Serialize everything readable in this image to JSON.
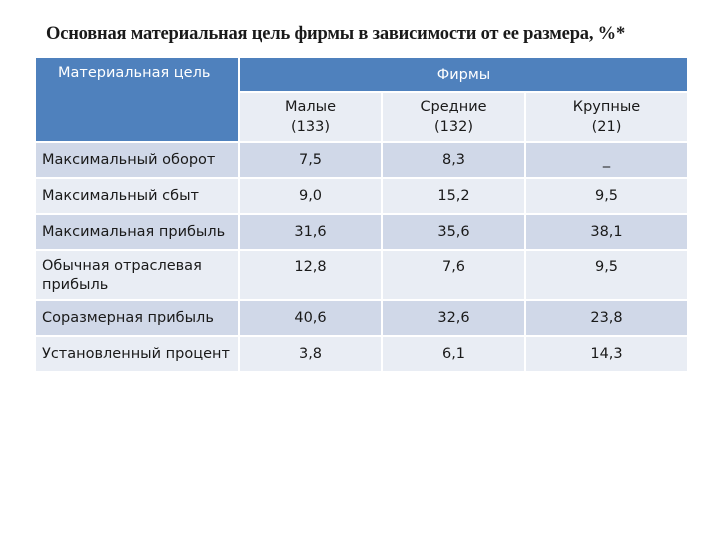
{
  "title": "Основная материальная цель фирмы в зависимости от ее размера, %*",
  "table": {
    "header": {
      "row_header": "Материальная цель",
      "group_header": "Фирмы",
      "columns": [
        {
          "name": "Малые",
          "count": "(133)"
        },
        {
          "name": "Средние",
          "count": "(132)"
        },
        {
          "name": "Крупные",
          "count": "(21)"
        }
      ]
    },
    "rows": [
      {
        "label": "Максимальный оборот",
        "values": [
          "7,5",
          "8,3",
          "_"
        ]
      },
      {
        "label": "Максимальный сбыт",
        "values": [
          "9,0",
          "15,2",
          "9,5"
        ]
      },
      {
        "label": "Максимальная прибыль",
        "values": [
          "31,6",
          "35,6",
          "38,1"
        ]
      },
      {
        "label": "Обычная отраслевая прибыль",
        "values": [
          "12,8",
          "7,6",
          "9,5"
        ]
      },
      {
        "label": "Соразмерная прибыль",
        "values": [
          "40,6",
          "32,6",
          "23,8"
        ]
      },
      {
        "label": "Установленный процент",
        "values": [
          "3,8",
          "6,1",
          "14,3"
        ]
      }
    ]
  },
  "colors": {
    "header_blue": "#4f81bd",
    "row_dark": "#d0d8e8",
    "row_light": "#e9edf4"
  }
}
